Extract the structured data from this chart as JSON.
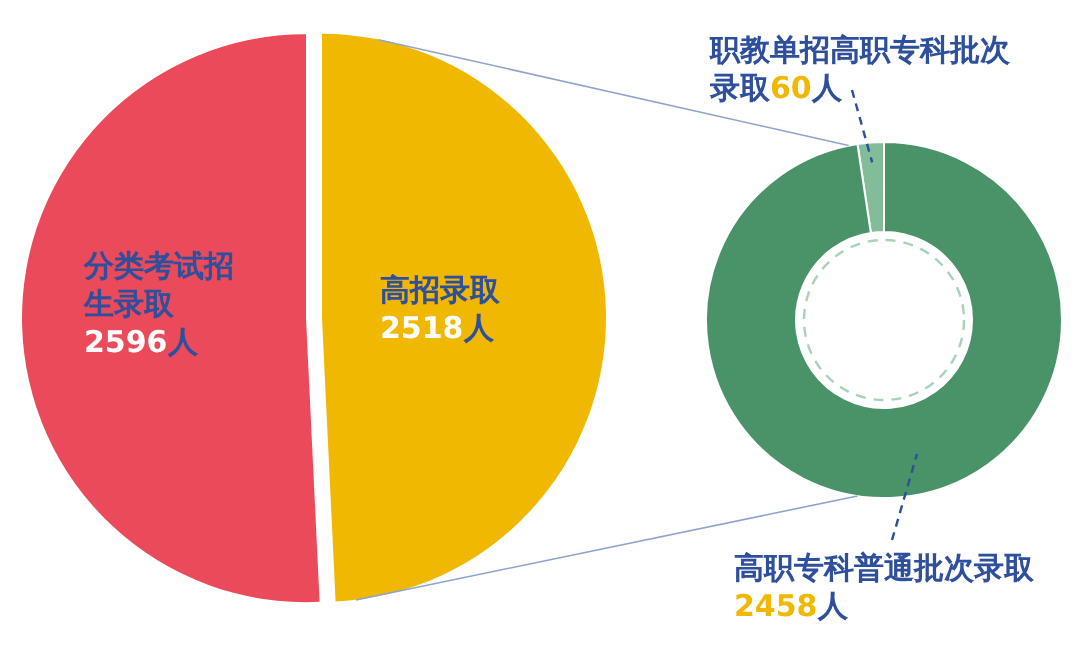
{
  "chart_data": [
    {
      "type": "pie",
      "categories": [
        "分类考试招生录取",
        "高招录取"
      ],
      "values": [
        2596,
        2518
      ],
      "colors": [
        "#ea4a59",
        "#f0b800"
      ],
      "value_labels": [
        "2596人",
        "2518人"
      ]
    },
    {
      "type": "donut",
      "categories": [
        "职教单招高职专科批次录取",
        "高职专科普通批次录取"
      ],
      "values": [
        60,
        2458
      ],
      "colors": [
        "#82bc98",
        "#4a9369"
      ],
      "value_labels": [
        "60人",
        "2458人"
      ]
    }
  ]
}
